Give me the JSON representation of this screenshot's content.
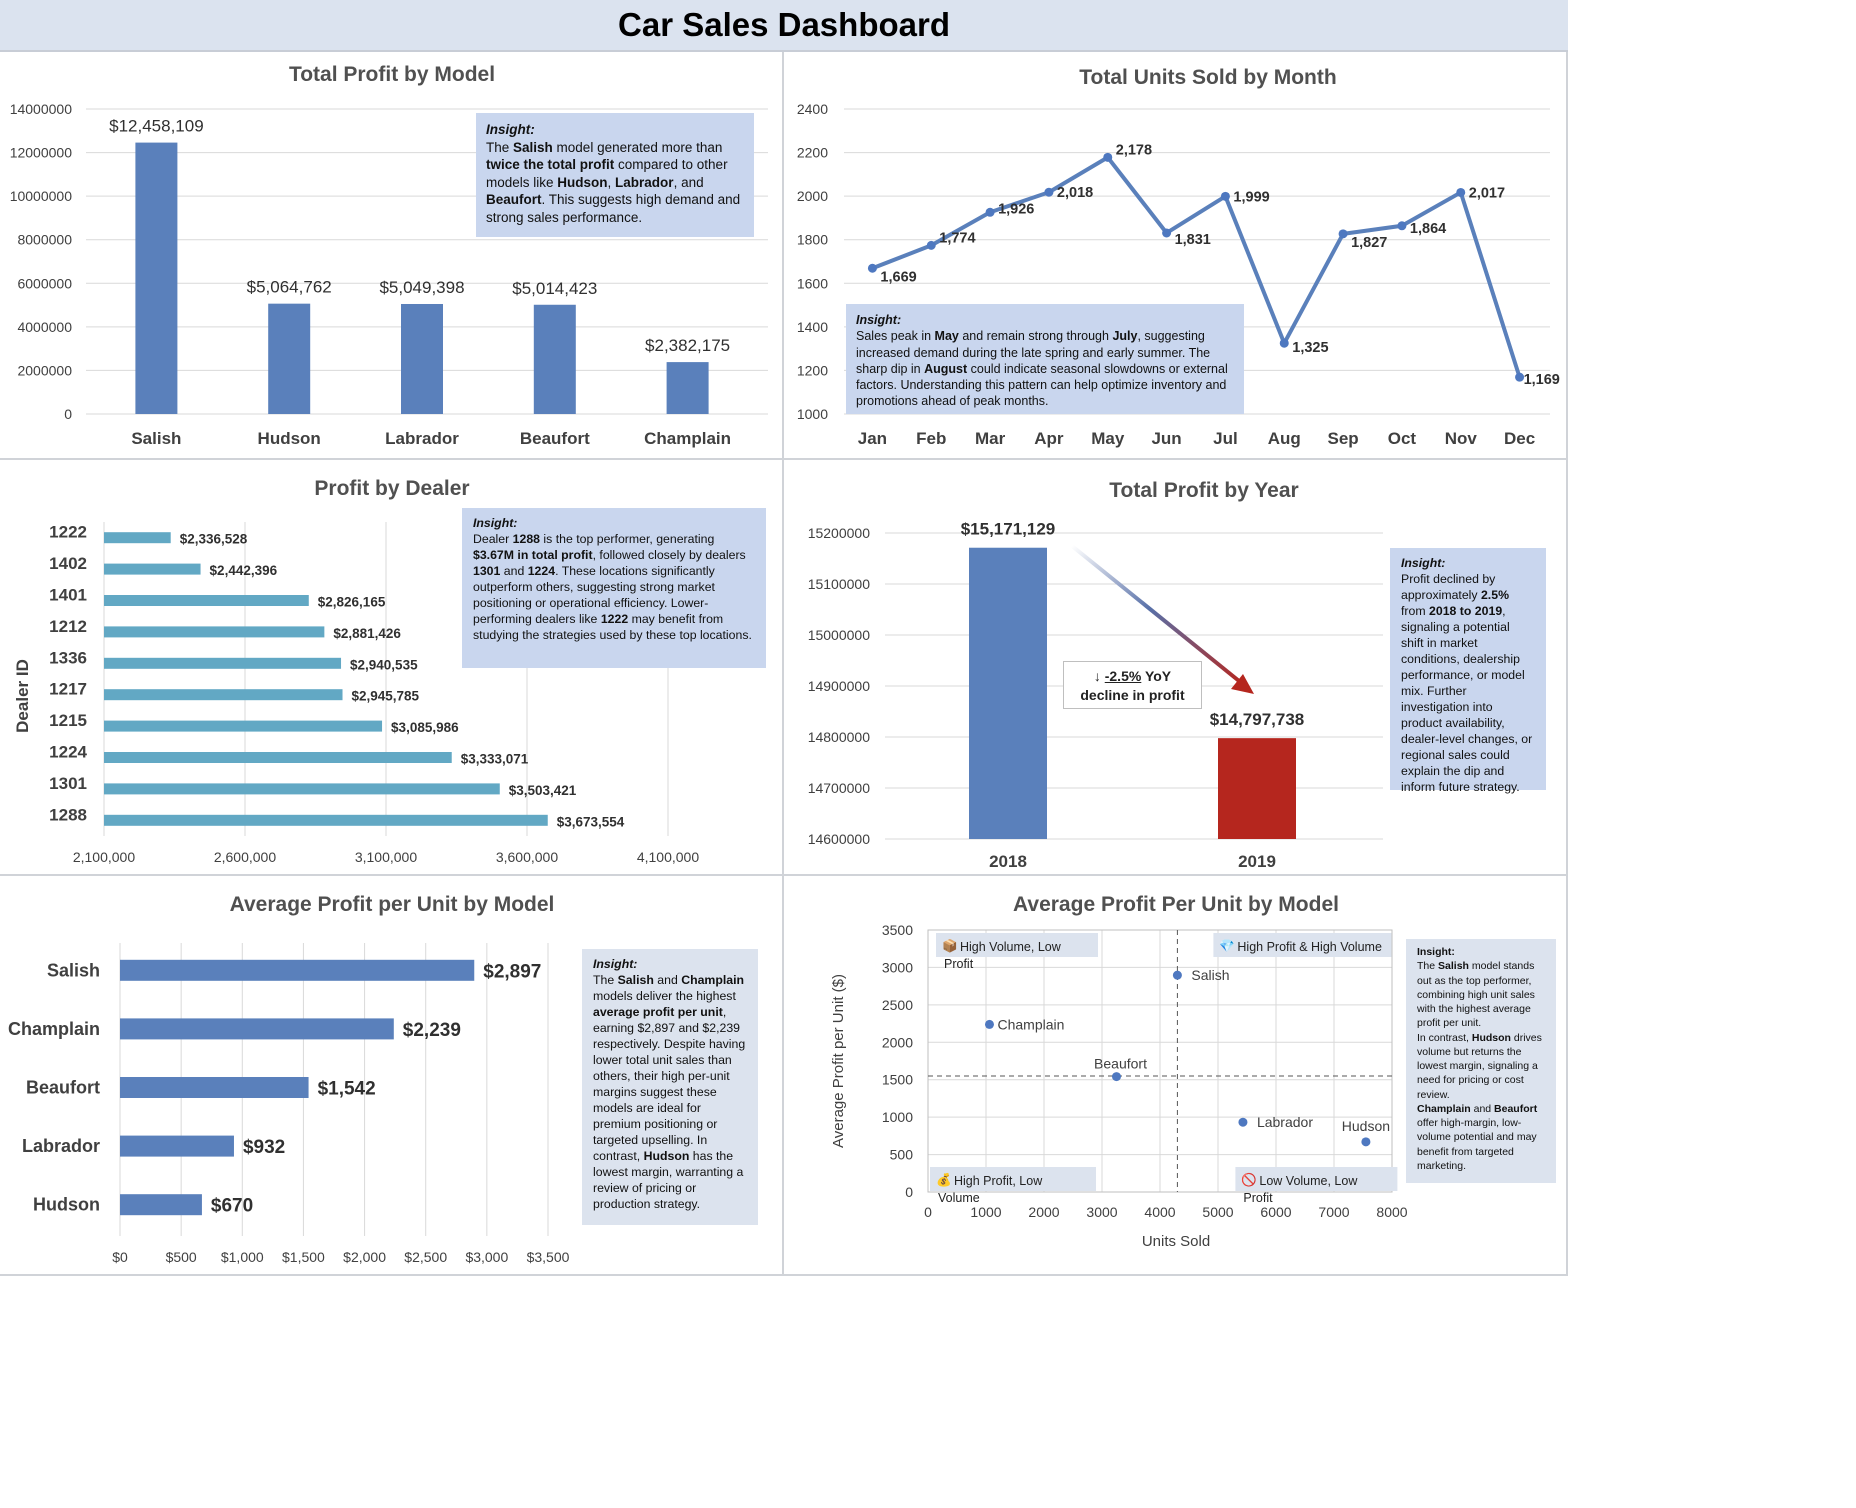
{
  "page": {
    "title": "Car Sales Dashboard"
  },
  "chart_data": [
    {
      "id": "profit-by-model",
      "type": "bar",
      "title": "Total Profit by Model",
      "categories": [
        "Salish",
        "Hudson",
        "Labrador",
        "Beaufort",
        "Champlain"
      ],
      "values": [
        12458109,
        5064762,
        5049398,
        5014423,
        2382175
      ],
      "value_labels": [
        "$12,458,109",
        "$5,064,762",
        "$5,049,398",
        "$5,014,423",
        "$2,382,175"
      ],
      "ylim": [
        0,
        14000000
      ],
      "yticks": [
        "0",
        "2000000",
        "4000000",
        "6000000",
        "8000000",
        "10000000",
        "12000000",
        "14000000"
      ],
      "color": "#5a80bb",
      "grid": true,
      "insight": {
        "heading": "Insight:",
        "html": "The <b>Salish</b> model generated more than <b>twice the total profit</b> compared to other models like <b>Hudson</b>, <b>Labrador</b>, and <b>Beaufort</b>. This suggests high demand and strong sales performance."
      }
    },
    {
      "id": "units-by-month",
      "type": "line",
      "title": "Total Units Sold by Month",
      "categories": [
        "Jan",
        "Feb",
        "Mar",
        "Apr",
        "May",
        "Jun",
        "Jul",
        "Aug",
        "Sep",
        "Oct",
        "Nov",
        "Dec"
      ],
      "values": [
        1669,
        1774,
        1926,
        2018,
        2178,
        1831,
        1999,
        1325,
        1827,
        1864,
        2017,
        1169
      ],
      "value_labels": [
        "1,669",
        "1,774",
        "1,926",
        "2,018",
        "2,178",
        "1,831",
        "1,999",
        "1,325",
        "1,827",
        "1,864",
        "2,017",
        "1,169"
      ],
      "ylim": [
        1000,
        2400
      ],
      "yticks": [
        "1000",
        "1200",
        "1400",
        "1600",
        "1800",
        "2000",
        "2200",
        "2400"
      ],
      "color": "#5a80bb",
      "grid": true,
      "insight": {
        "heading": "Insight:",
        "html": "Sales peak in <b>May</b> and remain strong through <b>July</b>, suggesting increased demand during the late spring and early summer. The sharp dip in <b>August</b> could indicate seasonal slowdowns or external factors. Understanding this pattern can help optimize inventory and promotions ahead of peak months."
      }
    },
    {
      "id": "profit-by-dealer",
      "type": "bar",
      "orientation": "horizontal",
      "title": "Profit by Dealer",
      "ylabel": "Dealer ID",
      "categories": [
        "1222",
        "1402",
        "1401",
        "1212",
        "1336",
        "1217",
        "1215",
        "1224",
        "1301",
        "1288"
      ],
      "values": [
        2336528,
        2442396,
        2826165,
        2881426,
        2940535,
        2945785,
        3085986,
        3333071,
        3503421,
        3673554
      ],
      "value_labels": [
        "$2,336,528",
        "$2,442,396",
        "$2,826,165",
        "$2,881,426",
        "$2,940,535",
        "$2,945,785",
        "$3,085,986",
        "$3,333,071",
        "$3,503,421",
        "$3,673,554"
      ],
      "xlim": [
        2100000,
        4100000
      ],
      "xticks": [
        "2,100,000",
        "2,600,000",
        "3,100,000",
        "3,600,000",
        "4,100,000"
      ],
      "color": "#62a8c4",
      "grid": true,
      "insight": {
        "heading": "Insight:",
        "html": "Dealer <b>1288</b> is the top performer, generating <b>$3.67M in total profit</b>, followed closely by dealers <b>1301</b> and <b>1224</b>. These locations significantly outperform others, suggesting strong market positioning or operational efficiency. Lower-performing dealers like <b>1222</b> may benefit from studying the strategies used by these top locations."
      }
    },
    {
      "id": "profit-by-year",
      "type": "bar",
      "title": "Total Profit by Year",
      "categories": [
        "2018",
        "2019"
      ],
      "values": [
        15171129,
        14797738
      ],
      "value_labels": [
        "$15,171,129",
        "$14,797,738"
      ],
      "colors": [
        "#5a80bb",
        "#b5261e"
      ],
      "ylim": [
        14600000,
        15200000
      ],
      "yticks": [
        "14600000",
        "14700000",
        "14800000",
        "14900000",
        "15000000",
        "15100000",
        "15200000"
      ],
      "grid": true,
      "annotation": {
        "arrow": "↓",
        "change": "-2.5%",
        "line1_rest": " YoY",
        "line2": "decline in profit"
      },
      "insight": {
        "heading": "Insight:",
        "html": "Profit declined by approximately <b>2.5%</b> from <b>2018 to 2019</b>, signaling a potential shift in market conditions, dealership performance, or model mix. Further investigation into product availability, dealer-level changes, or regional sales could explain the dip and inform future strategy."
      }
    },
    {
      "id": "avg-profit-per-unit",
      "type": "bar",
      "orientation": "horizontal",
      "title": "Average Profit per Unit by Model",
      "categories": [
        "Salish",
        "Champlain",
        "Beaufort",
        "Labrador",
        "Hudson"
      ],
      "values": [
        2897,
        2239,
        1542,
        932,
        670
      ],
      "value_labels": [
        "$2,897",
        "$2,239",
        "$1,542",
        "$932",
        "$670"
      ],
      "xlim": [
        0,
        3500
      ],
      "xticks": [
        "$0",
        "$500",
        "$1,000",
        "$1,500",
        "$2,000",
        "$2,500",
        "$3,000",
        "$3,500"
      ],
      "color": "#5a80bb",
      "grid": true,
      "insight": {
        "heading": "Insight:",
        "html": "The <b>Salish</b> and <b>Champlain</b> models deliver the highest <b>average profit per unit</b>, earning $2,897 and $2,239 respectively. Despite having lower total unit sales than others, their high per-unit margins suggest these models are ideal for premium positioning or targeted upselling. In contrast, <b>Hudson</b> has the lowest margin, warranting a review of pricing or production strategy."
      }
    },
    {
      "id": "avg-profit-scatter",
      "type": "scatter",
      "title": "Average Profit Per Unit by Model",
      "xlabel": "Units Sold",
      "ylabel": "Average Profit per Unit ($)",
      "points": [
        {
          "label": "Salish",
          "x": 4300,
          "y": 2897
        },
        {
          "label": "Champlain",
          "x": 1060,
          "y": 2239
        },
        {
          "label": "Beaufort",
          "x": 3250,
          "y": 1542
        },
        {
          "label": "Labrador",
          "x": 5430,
          "y": 932
        },
        {
          "label": "Hudson",
          "x": 7550,
          "y": 670
        }
      ],
      "xlim": [
        0,
        8000
      ],
      "ylim": [
        0,
        3500
      ],
      "xticks": [
        "0",
        "1000",
        "2000",
        "3000",
        "4000",
        "5000",
        "6000",
        "7000",
        "8000"
      ],
      "yticks": [
        "0",
        "500",
        "1000",
        "1500",
        "2000",
        "2500",
        "3000",
        "3500"
      ],
      "ref_x": 4300,
      "ref_y": 1550,
      "color": "#4e78c0",
      "grid": true,
      "quadrants": {
        "top_left": {
          "icon": "📦",
          "line1": "High Volume, Low",
          "line2": "Profit"
        },
        "top_right": {
          "icon": "💎",
          "line1": "High Profit & High Volume",
          "line2": ""
        },
        "bottom_left": {
          "icon": "💰",
          "line1": "High Profit, Low",
          "line2": "Volume"
        },
        "bottom_right": {
          "icon": "🚫",
          "line1": "Low Volume, Low",
          "line2": "Profit"
        }
      },
      "insight": {
        "heading": "Insight:",
        "html": "The <b>Salish</b> model stands out as the top performer, combining high unit sales with the highest average profit per unit.<br>In contrast, <b>Hudson</b> drives volume but returns the lowest margin, signaling a need for pricing or cost review.<br><b>Champlain</b> and <b>Beaufort</b> offer high-margin, low-volume potential and may benefit from targeted marketing."
      }
    }
  ]
}
